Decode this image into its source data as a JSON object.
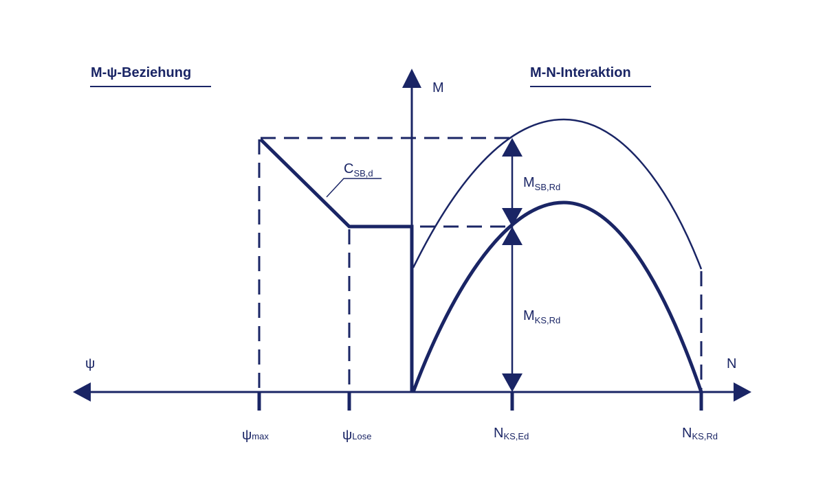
{
  "colors": {
    "ink": "#1a2565",
    "background": "#ffffff"
  },
  "left_title": "M-ψ-Beziehung",
  "right_title": "M-N-Interaktion",
  "axes": {
    "vertical": "M",
    "right": "N",
    "left": "ψ"
  },
  "ticks": {
    "psi_max": {
      "main": "ψ",
      "sub": "max"
    },
    "psi_lose": {
      "main": "ψ",
      "sub": "Lose"
    },
    "n_ks_ed": {
      "main": "N",
      "sub": "KS,Ed"
    },
    "n_ks_rd": {
      "main": "N",
      "sub": "KS,Rd"
    }
  },
  "annotations": {
    "c_sb_d": {
      "main": "C",
      "sub": "SB,d"
    },
    "m_sb_rd": {
      "main": "M",
      "sub": "SB,Rd"
    },
    "m_ks_rd": {
      "main": "M",
      "sub": "KS,Rd"
    }
  }
}
